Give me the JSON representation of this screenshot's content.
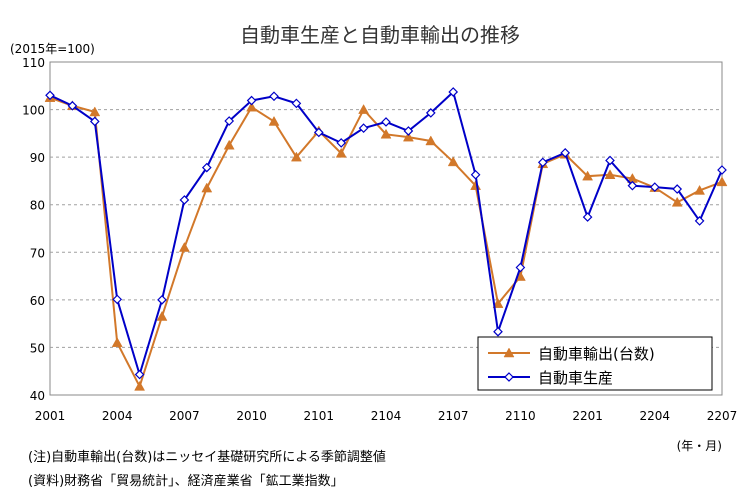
{
  "chart_data": {
    "type": "line",
    "title": "自動車生産と自動車輸出の推移",
    "ylabel": "(2015年=100)",
    "xlabel": "(年・月)",
    "ylim": [
      40,
      110
    ],
    "yticks": [
      40,
      50,
      60,
      70,
      80,
      90,
      100,
      110
    ],
    "xtick_labels": [
      "2001",
      "2004",
      "2007",
      "2010",
      "2101",
      "2104",
      "2107",
      "2110",
      "2201",
      "2204",
      "2207"
    ],
    "grid": true,
    "legend_position": "bottom-right",
    "x_count": 31,
    "series": [
      {
        "name": "自動車輸出(台数)",
        "color": "#d2782a",
        "marker": "triangle",
        "values": [
          102.5,
          100.8,
          99.5,
          51.0,
          41.8,
          56.5,
          71.0,
          83.5,
          92.5,
          100.5,
          97.5,
          90.0,
          95.5,
          90.8,
          100.0,
          94.8,
          94.2,
          93.4,
          89.0,
          84.0,
          59.2,
          64.9,
          88.6,
          90.6,
          86.0,
          86.3,
          85.5,
          83.6,
          80.5,
          83.0,
          84.8
        ]
      },
      {
        "name": "自動車生産",
        "color": "#0000c8",
        "marker": "diamond",
        "values": [
          103.0,
          100.8,
          97.5,
          60.1,
          44.3,
          60.0,
          81.0,
          87.8,
          97.6,
          101.9,
          102.8,
          101.3,
          95.2,
          93.0,
          96.1,
          97.4,
          95.5,
          99.3,
          103.7,
          86.3,
          53.3,
          66.8,
          88.9,
          90.9,
          77.4,
          89.3,
          84.0,
          83.7,
          83.3,
          76.6,
          87.3
        ]
      }
    ]
  },
  "notes": {
    "line1": "(注)自動車輸出(台数)はニッセイ基礎研究所による季節調整値",
    "line2": "(資料)財務省「貿易統計」、経済産業省「鉱工業指数」"
  }
}
